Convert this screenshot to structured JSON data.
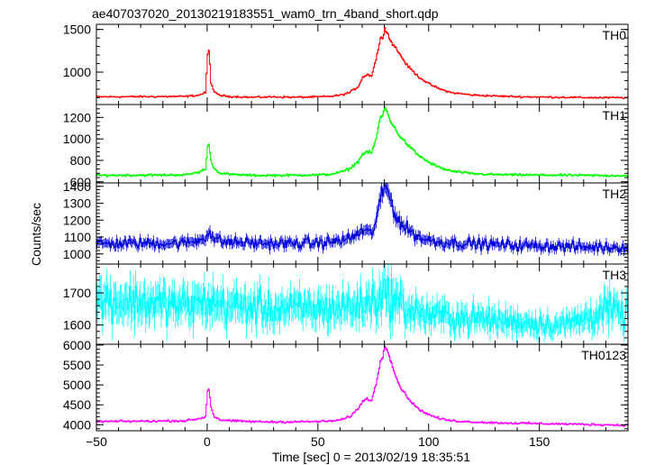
{
  "chart_data": {
    "type": "line",
    "title": "ae407037020_20130219183551_wam0_trn_4band_short.qdp",
    "xlabel": "Time [sec] 0 = 2013/02/19 18:35:51",
    "ylabel": "Counts/sec",
    "xlim": [
      -50,
      190
    ],
    "x_ticks": [
      -50,
      0,
      50,
      100,
      150
    ],
    "panels": [
      {
        "name": "TH0",
        "color": "#ff0000",
        "ylim": [
          620,
          1560
        ],
        "y_ticks": [
          1000,
          1500
        ],
        "baseline": 700,
        "noise": 10,
        "peak": 1520,
        "pre_peak": 1300,
        "x": [
          -50,
          -10,
          -4,
          -1,
          0,
          0.6,
          1.5,
          3,
          6,
          10,
          20,
          30,
          40,
          50,
          55,
          60,
          64,
          68,
          70,
          72,
          74,
          76,
          78,
          79,
          80,
          81,
          82,
          83,
          85,
          87,
          90,
          95,
          100,
          105,
          110,
          120,
          130,
          140,
          150,
          160,
          170,
          180,
          188
        ],
        "values": [
          710,
          715,
          730,
          760,
          1200,
          1260,
          880,
          760,
          725,
          715,
          705,
          710,
          705,
          710,
          715,
          730,
          760,
          830,
          940,
          970,
          960,
          1150,
          1390,
          1400,
          1520,
          1470,
          1400,
          1350,
          1280,
          1200,
          1080,
          950,
          860,
          800,
          760,
          730,
          720,
          712,
          708,
          705,
          702,
          700,
          700
        ]
      },
      {
        "name": "TH1",
        "color": "#00ff00",
        "ylim": [
          590,
          1320
        ],
        "y_ticks": [
          600,
          800,
          1000,
          1200
        ],
        "baseline": 660,
        "noise": 10,
        "peak": 1290,
        "pre_peak": 1080,
        "x": [
          -50,
          -10,
          -4,
          -1,
          0,
          0.6,
          1.5,
          3,
          6,
          10,
          20,
          30,
          40,
          50,
          55,
          60,
          64,
          68,
          70,
          72,
          74,
          76,
          78,
          79,
          80,
          81,
          82,
          83,
          85,
          87,
          90,
          95,
          100,
          105,
          110,
          120,
          130,
          140,
          150,
          160,
          170,
          180,
          188
        ],
        "values": [
          660,
          665,
          690,
          720,
          920,
          950,
          800,
          720,
          680,
          670,
          660,
          660,
          662,
          665,
          670,
          690,
          720,
          790,
          860,
          880,
          870,
          1000,
          1200,
          1220,
          1290,
          1250,
          1200,
          1150,
          1080,
          1020,
          950,
          850,
          780,
          730,
          700,
          675,
          668,
          665,
          663,
          662,
          660,
          658,
          658
        ]
      },
      {
        "name": "TH2",
        "color": "#0000dd",
        "ylim": [
          940,
          1420
        ],
        "y_ticks": [
          1000,
          1100,
          1200,
          1300,
          1400
        ],
        "baseline": 1060,
        "noise": 30,
        "peak": 1400,
        "pre_peak": 1200,
        "x": [
          -50,
          -10,
          -4,
          -1,
          0,
          0.6,
          1.5,
          3,
          6,
          10,
          20,
          30,
          40,
          50,
          55,
          60,
          64,
          68,
          70,
          72,
          74,
          76,
          78,
          79,
          80,
          81,
          82,
          83,
          85,
          87,
          90,
          95,
          100,
          105,
          110,
          120,
          130,
          140,
          150,
          160,
          170,
          180,
          188
        ],
        "values": [
          1060,
          1065,
          1080,
          1100,
          1130,
          1140,
          1110,
          1090,
          1075,
          1070,
          1065,
          1060,
          1062,
          1065,
          1070,
          1080,
          1090,
          1120,
          1140,
          1130,
          1120,
          1200,
          1320,
          1350,
          1400,
          1380,
          1350,
          1300,
          1230,
          1180,
          1150,
          1100,
          1080,
          1070,
          1065,
          1060,
          1055,
          1050,
          1048,
          1045,
          1040,
          1040,
          1040
        ]
      },
      {
        "name": "TH3",
        "color": "#00ffff",
        "ylim": [
          1540,
          1790
        ],
        "y_ticks": [
          1600,
          1700
        ],
        "baseline": 1640,
        "noise": 45,
        "peak": 1740,
        "pre_peak": 1700,
        "x": [
          -50,
          -30,
          -10,
          0,
          10,
          30,
          50,
          70,
          80,
          90,
          100,
          120,
          140,
          160,
          170,
          180,
          188
        ],
        "values": [
          1680,
          1670,
          1660,
          1670,
          1660,
          1650,
          1650,
          1660,
          1700,
          1650,
          1630,
          1620,
          1610,
          1600,
          1620,
          1650,
          1630
        ]
      },
      {
        "name": "TH0123",
        "color": "#ff00ff",
        "ylim": [
          3850,
          6020
        ],
        "y_ticks": [
          4000,
          4500,
          5000,
          5500,
          6000
        ],
        "baseline": 4060,
        "noise": 25,
        "peak": 6000,
        "pre_peak": 5400,
        "x": [
          -50,
          -10,
          -4,
          -1,
          0,
          0.6,
          1.5,
          3,
          6,
          10,
          20,
          30,
          40,
          50,
          55,
          60,
          64,
          68,
          70,
          72,
          74,
          76,
          78,
          79,
          80,
          81,
          82,
          83,
          85,
          87,
          90,
          95,
          100,
          105,
          110,
          120,
          130,
          140,
          150,
          160,
          170,
          180,
          188
        ],
        "values": [
          4080,
          4100,
          4150,
          4200,
          4850,
          4900,
          4450,
          4200,
          4120,
          4100,
          4080,
          4070,
          4075,
          4080,
          4090,
          4120,
          4200,
          4400,
          4600,
          4650,
          4620,
          5000,
          5600,
          5700,
          6000,
          5900,
          5750,
          5550,
          5200,
          4950,
          4700,
          4400,
          4250,
          4150,
          4100,
          4070,
          4050,
          4040,
          4030,
          4020,
          4010,
          4000,
          3990
        ]
      }
    ]
  }
}
